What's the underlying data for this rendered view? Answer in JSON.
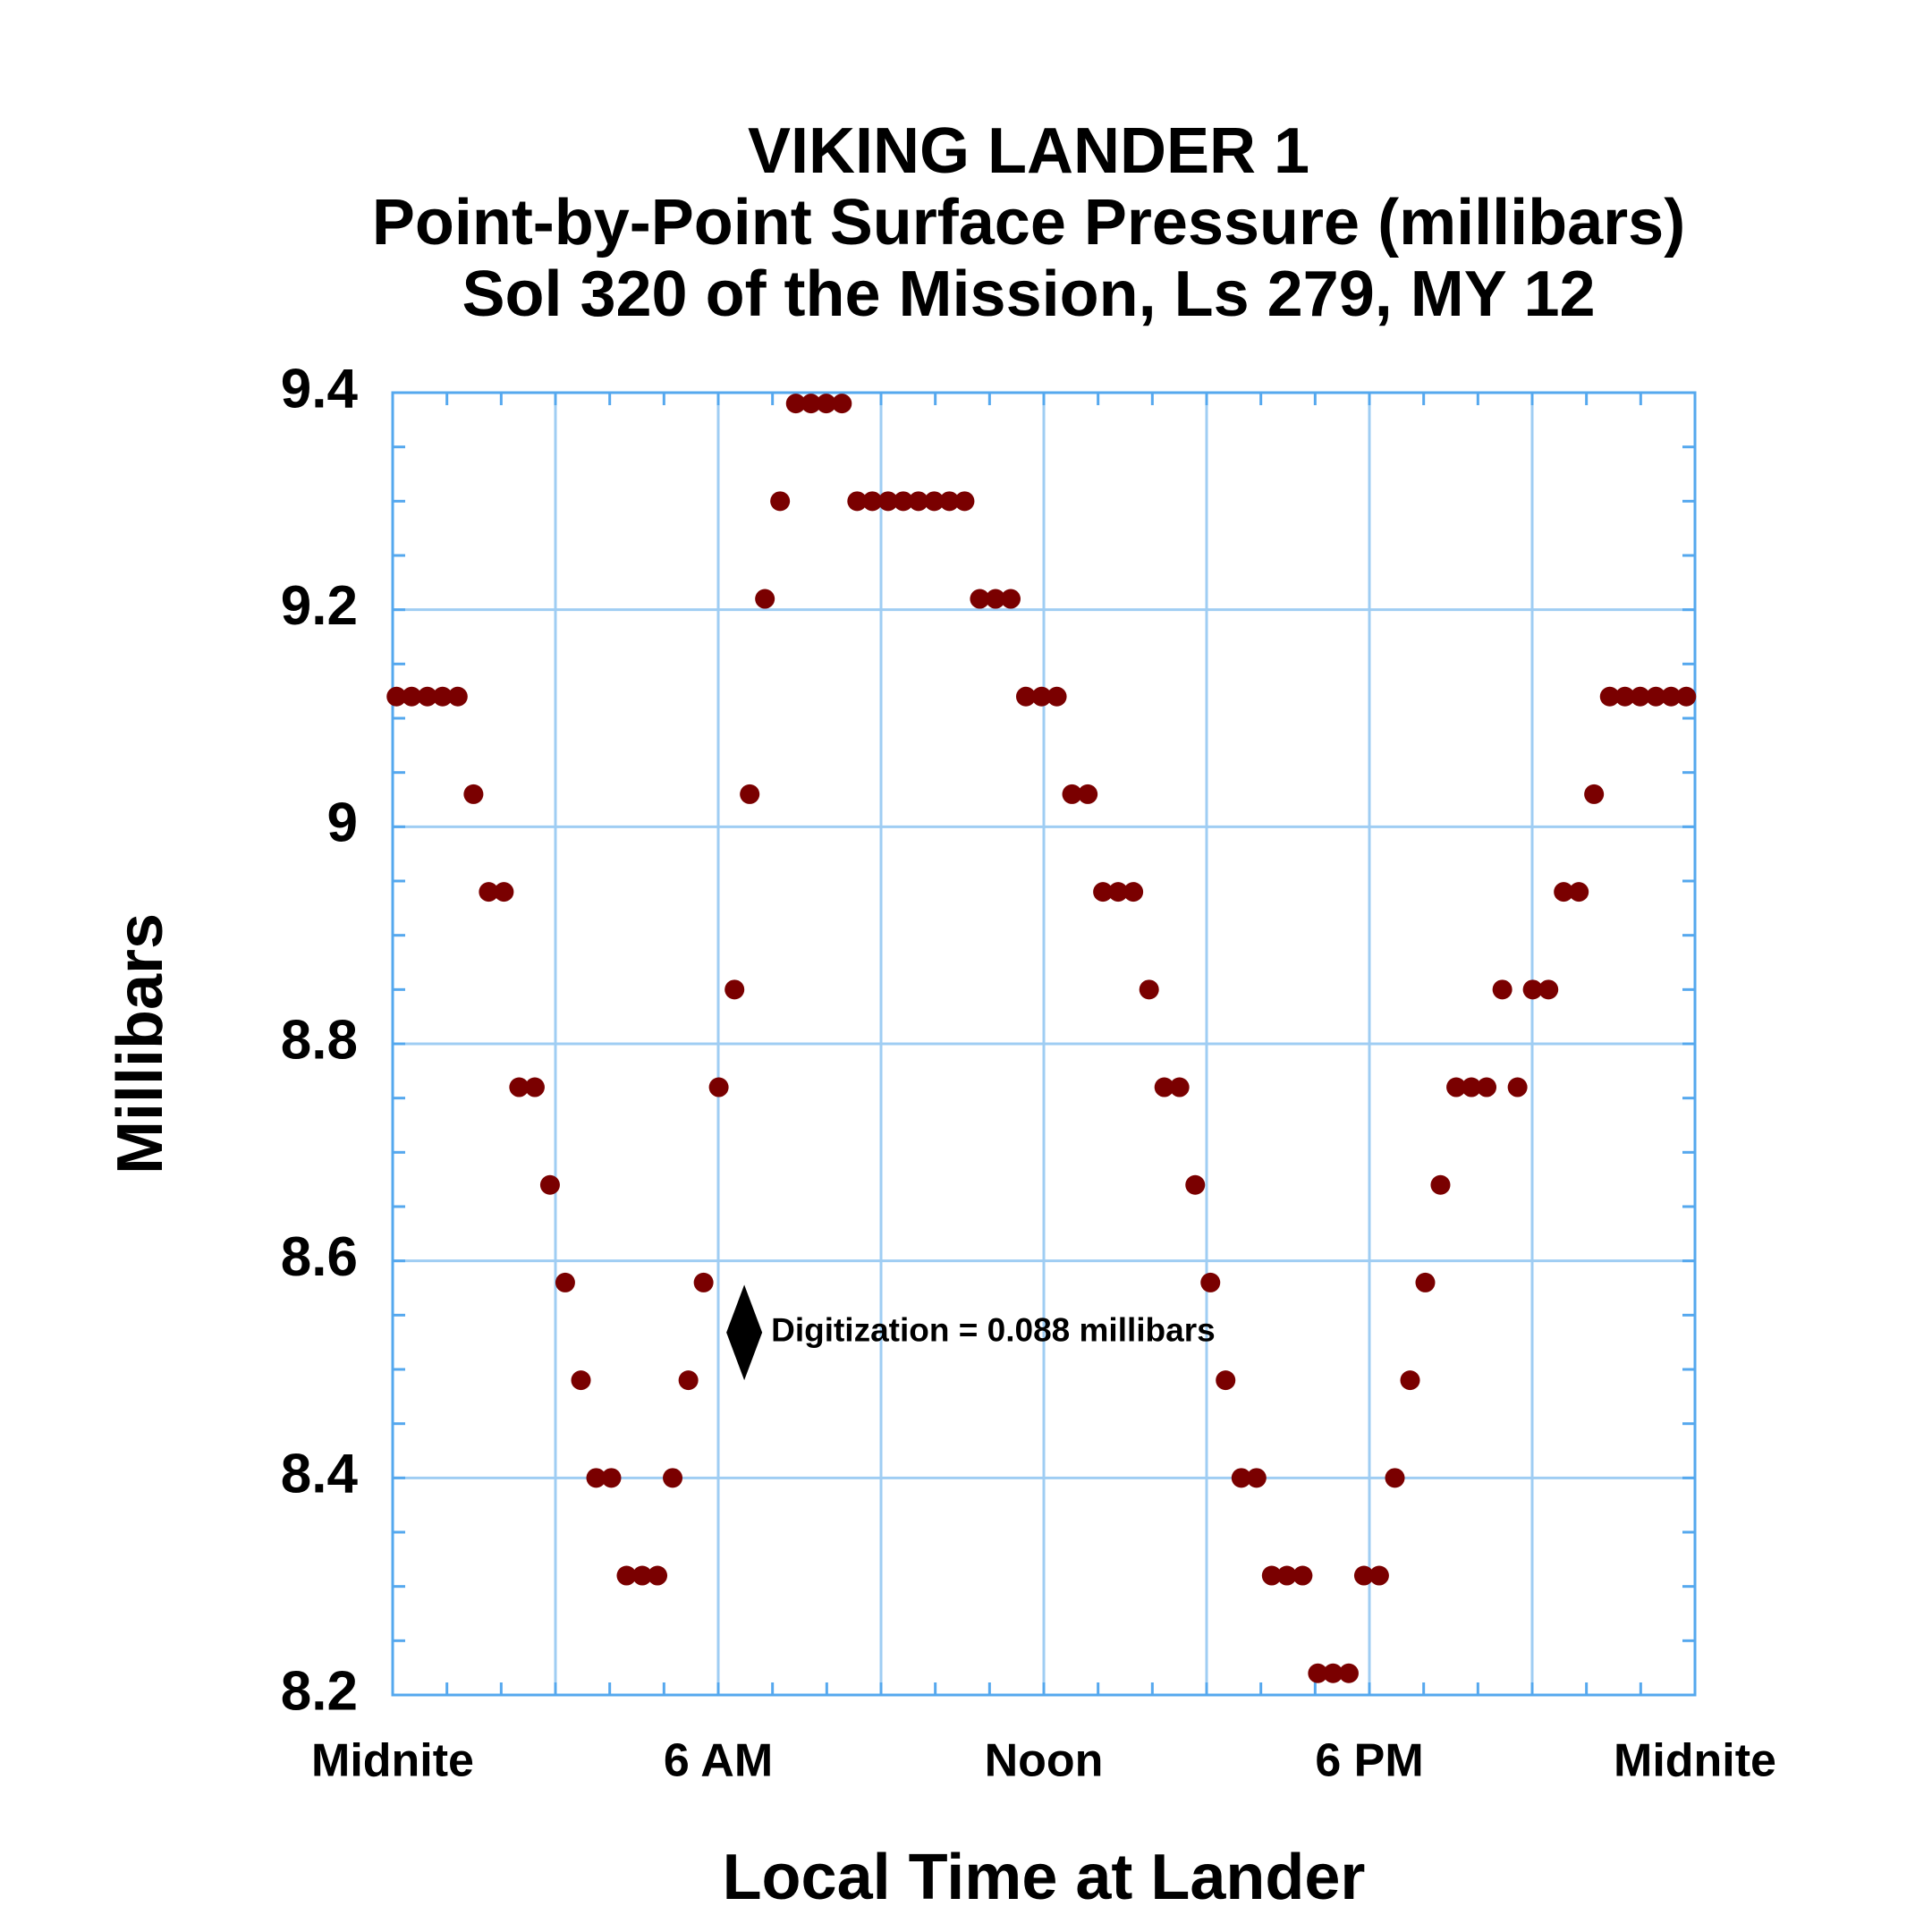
{
  "chart_data": {
    "type": "scatter",
    "title": [
      "VIKING LANDER 1",
      "Point-by-Point Surface Pressure (millibars)",
      "Sol 320 of the Mission, Ls 279, MY 12"
    ],
    "xlabel": "Local Time at Lander",
    "ylabel": "Millibars",
    "xlim": [
      0,
      24
    ],
    "ylim": [
      8.2,
      9.4
    ],
    "xticks": [
      {
        "value": 0,
        "label": "Midnite"
      },
      {
        "value": 6,
        "label": "6 AM"
      },
      {
        "value": 12,
        "label": "Noon"
      },
      {
        "value": 18,
        "label": "6 PM"
      },
      {
        "value": 24,
        "label": "Midnite"
      }
    ],
    "yticks": [
      8.2,
      8.4,
      8.6,
      8.8,
      9,
      9.2,
      9.4
    ],
    "xgrid_step": 3,
    "xminor_step": 1,
    "yminor_step": 0.05,
    "grid": true,
    "grid_color": "#9fcdf3",
    "axis_color": "#55a8ee",
    "series": [
      {
        "name": null,
        "color": "#7a0000",
        "x": [
          0.07,
          0.35,
          0.64,
          0.92,
          1.2,
          1.49,
          1.77,
          2.05,
          2.33,
          2.62,
          2.9,
          3.18,
          3.47,
          3.75,
          4.03,
          4.31,
          4.6,
          4.88,
          5.16,
          5.45,
          5.73,
          6.01,
          6.3,
          6.58,
          6.86,
          7.14,
          7.43,
          7.71,
          7.99,
          8.28,
          8.56,
          8.84,
          9.13,
          9.41,
          9.69,
          9.98,
          10.26,
          10.54,
          10.82,
          11.11,
          11.39,
          11.67,
          11.96,
          12.24,
          12.52,
          12.81,
          13.09,
          13.37,
          13.65,
          13.94,
          14.22,
          14.5,
          14.79,
          15.07,
          15.35,
          15.64,
          15.92,
          16.2,
          16.48,
          16.77,
          17.05,
          17.33,
          17.62,
          17.9,
          18.18,
          18.47,
          18.75,
          19.03,
          19.31,
          19.6,
          19.88,
          20.16,
          20.45,
          20.73,
          21.01,
          21.3,
          21.58,
          21.86,
          22.14,
          22.43,
          22.71,
          22.99,
          23.28,
          23.56,
          23.84
        ],
        "values": [
          9.12,
          9.12,
          9.12,
          9.12,
          9.12,
          9.03,
          8.94,
          8.94,
          8.76,
          8.76,
          8.67,
          8.58,
          8.49,
          8.4,
          8.4,
          8.31,
          8.31,
          8.31,
          8.4,
          8.49,
          8.58,
          8.76,
          8.85,
          9.03,
          9.21,
          9.3,
          9.39,
          9.39,
          9.39,
          9.39,
          9.3,
          9.3,
          9.3,
          9.3,
          9.3,
          9.3,
          9.3,
          9.3,
          9.21,
          9.21,
          9.21,
          9.12,
          9.12,
          9.12,
          9.03,
          9.03,
          8.94,
          8.94,
          8.94,
          8.85,
          8.76,
          8.76,
          8.67,
          8.58,
          8.49,
          8.4,
          8.4,
          8.31,
          8.31,
          8.31,
          8.22,
          8.22,
          8.22,
          8.31,
          8.31,
          8.4,
          8.49,
          8.58,
          8.67,
          8.76,
          8.76,
          8.76,
          8.85,
          8.76,
          8.85,
          8.85,
          8.94,
          8.94,
          9.03,
          9.12,
          9.12,
          9.12,
          9.12,
          9.12,
          9.12
        ]
      }
    ],
    "annotation": {
      "text": "Digitization = 0.088 millibars",
      "x": 6.48,
      "y": [
        8.49,
        8.578
      ]
    }
  }
}
